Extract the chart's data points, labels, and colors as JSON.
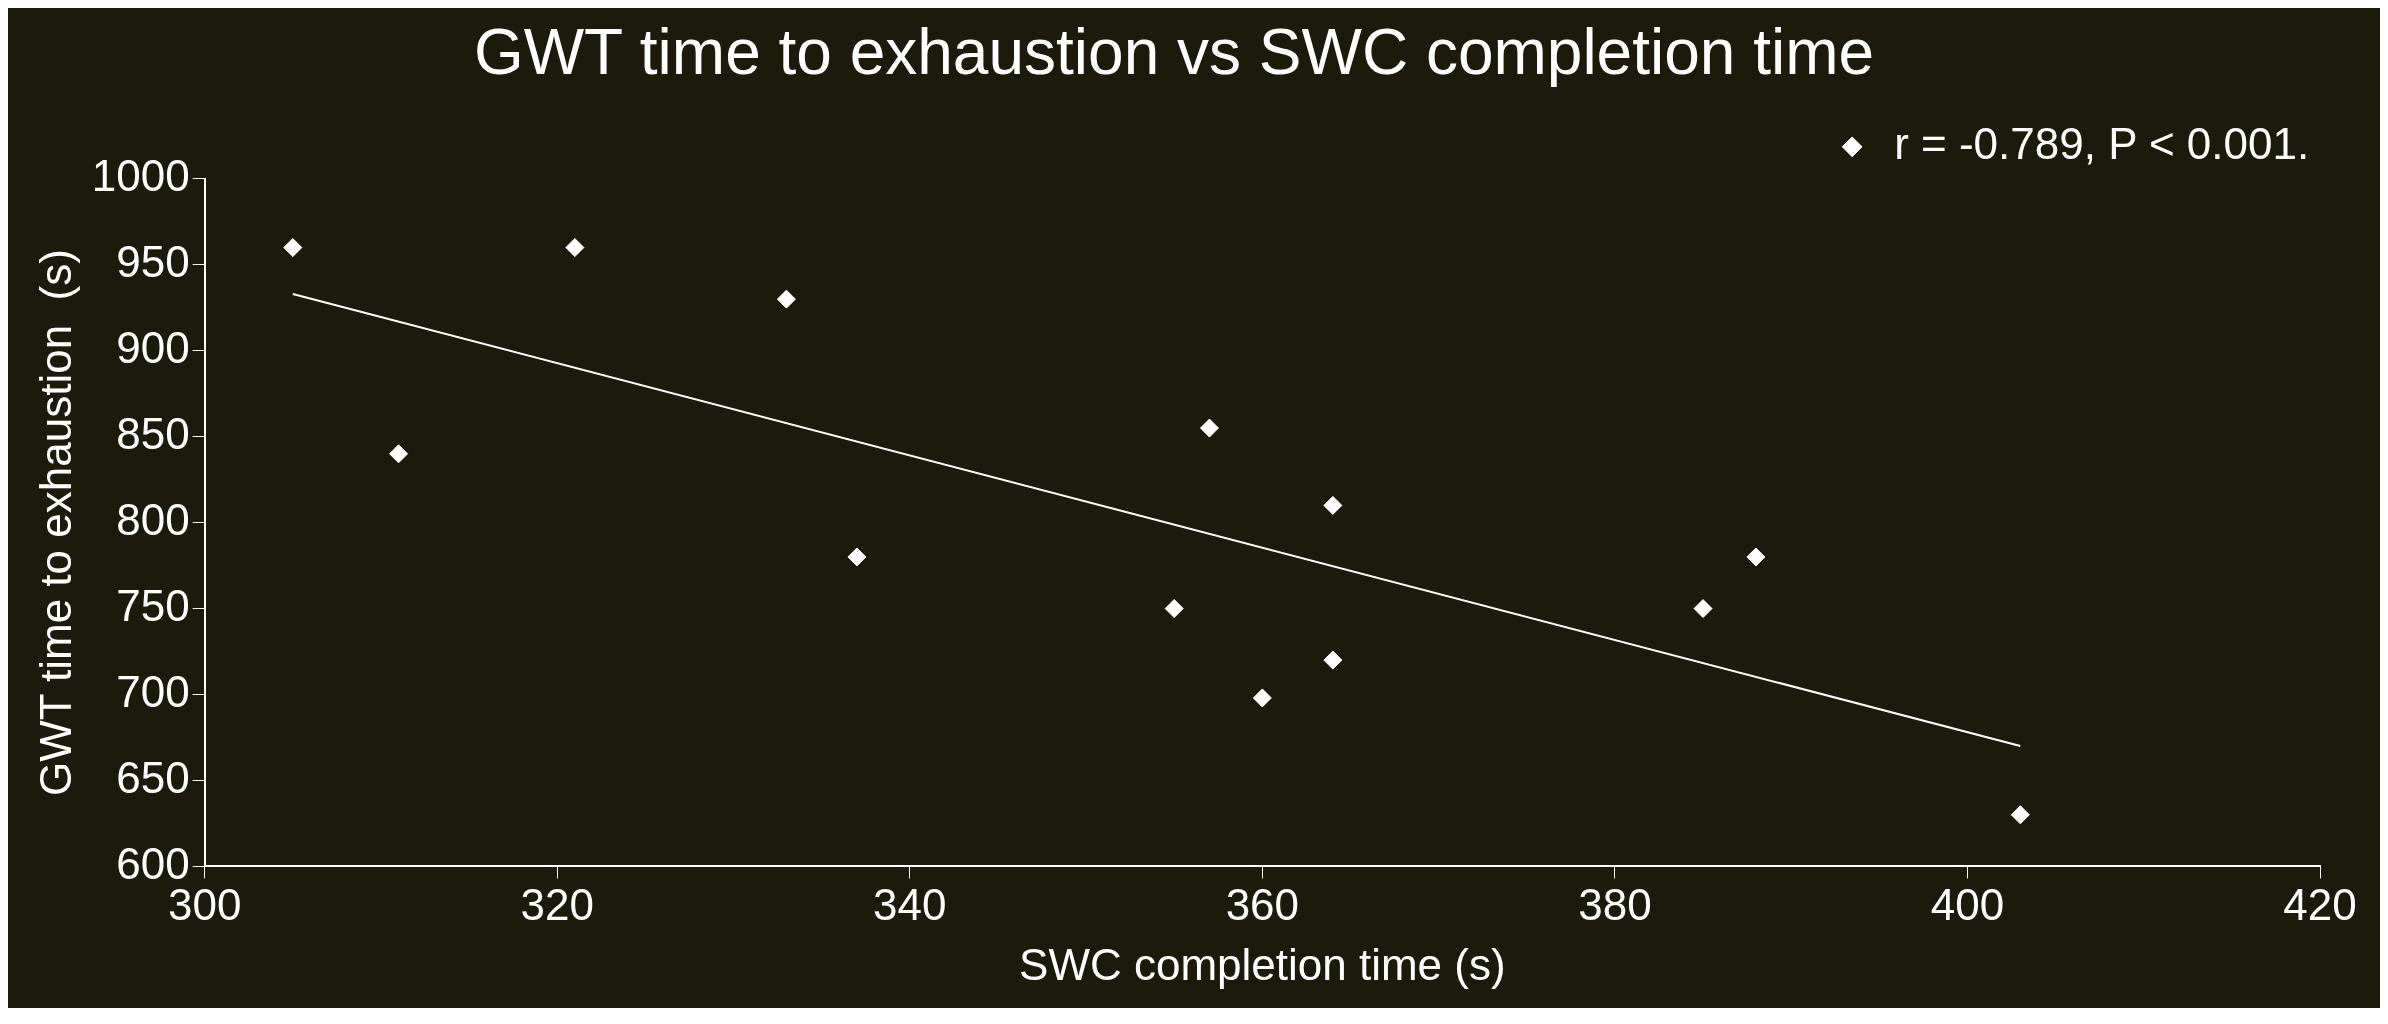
{
  "chart_data": {
    "type": "scatter",
    "title": "GWT time to exhaustion vs SWC completion time",
    "xlabel": "SWC completion time (s)",
    "ylabel": "GWT time to exhaustion  (s)",
    "xlim": [
      300,
      420
    ],
    "xticks": [
      300,
      320,
      340,
      360,
      380,
      400,
      420
    ],
    "ylim": [
      600,
      1000
    ],
    "yticks": [
      600,
      650,
      700,
      750,
      800,
      850,
      900,
      950,
      1000
    ],
    "grid": false,
    "legend": "top right",
    "marker": "diamond",
    "series": [
      {
        "name": "r = -0.789, P < 0.001.",
        "type": "scatter",
        "color": "#ffffff",
        "x": [
          305,
          311,
          321,
          333,
          337,
          355,
          357,
          360,
          364,
          364,
          385,
          388,
          403
        ],
        "values": [
          960,
          840,
          960,
          930,
          780,
          750,
          855,
          698,
          810,
          720,
          750,
          780,
          630
        ]
      },
      {
        "type": "line",
        "color": "#ffffff",
        "line_style": "solid",
        "marker": "none",
        "x": [
          305,
          403
        ],
        "values": [
          933,
          670
        ]
      }
    ]
  }
}
